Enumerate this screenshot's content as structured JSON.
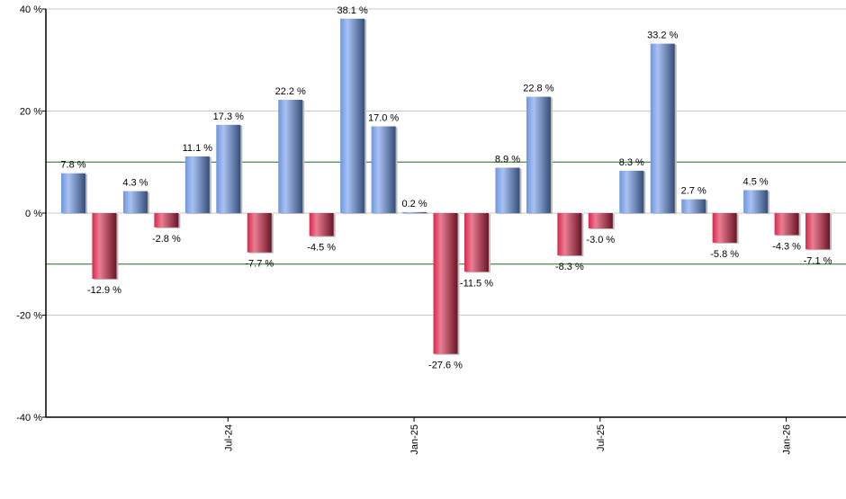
{
  "chart_data": {
    "type": "bar",
    "title": "",
    "xlabel": "",
    "ylabel": "",
    "ylim": [
      -40,
      40
    ],
    "yticks": [
      -40,
      -20,
      0,
      20,
      40
    ],
    "ytick_labels": [
      "-40 %",
      "-20 %",
      "0 %",
      "20 %",
      "40 %"
    ],
    "reference_lines": [
      10,
      -10
    ],
    "grid": true,
    "categories": [
      "Feb-24",
      "Mar-24",
      "Apr-24",
      "May-24",
      "Jun-24",
      "Jul-24",
      "Aug-24",
      "Sep-24",
      "Oct-24",
      "Nov-24",
      "Dec-24",
      "Jan-25",
      "Feb-25",
      "Mar-25",
      "Apr-25",
      "May-25",
      "Jun-25",
      "Jul-25",
      "Aug-25",
      "Sep-25",
      "Oct-25",
      "Nov-25",
      "Dec-25",
      "Jan-26",
      "Feb-26"
    ],
    "xtick_labels": [
      {
        "category": "Jul-24",
        "label": "Jul-24"
      },
      {
        "category": "Jan-25",
        "label": "Jan-25"
      },
      {
        "category": "Jul-25",
        "label": "Jul-25"
      },
      {
        "category": "Jan-26",
        "label": "Jan-26"
      }
    ],
    "values": [
      7.8,
      -12.9,
      4.3,
      -2.8,
      11.1,
      17.3,
      -7.7,
      22.2,
      -4.5,
      38.1,
      17.0,
      0.2,
      -27.6,
      -11.5,
      8.9,
      22.8,
      -8.3,
      -3.0,
      8.3,
      33.2,
      2.7,
      -5.8,
      4.5,
      -4.3,
      -7.1
    ],
    "data_labels": [
      "7.8 %",
      "-12.9 %",
      "4.3 %",
      "-2.8 %",
      "11.1 %",
      "17.3 %",
      "-7.7 %",
      "22.2 %",
      "-4.5 %",
      "38.1 %",
      "17.0 %",
      "0.2 %",
      "-27.6 %",
      "-11.5 %",
      "8.9 %",
      "22.8 %",
      "-8.3 %",
      "-3.0 %",
      "8.3 %",
      "33.2 %",
      "2.7 %",
      "-5.8 %",
      "4.5 %",
      "-4.3 %",
      "-7.1 %"
    ],
    "colors": {
      "positive": "#6f95e0",
      "negative": "#c8304f",
      "reference_line": "#1e6b1e",
      "grid": "#c8c8c8"
    }
  }
}
